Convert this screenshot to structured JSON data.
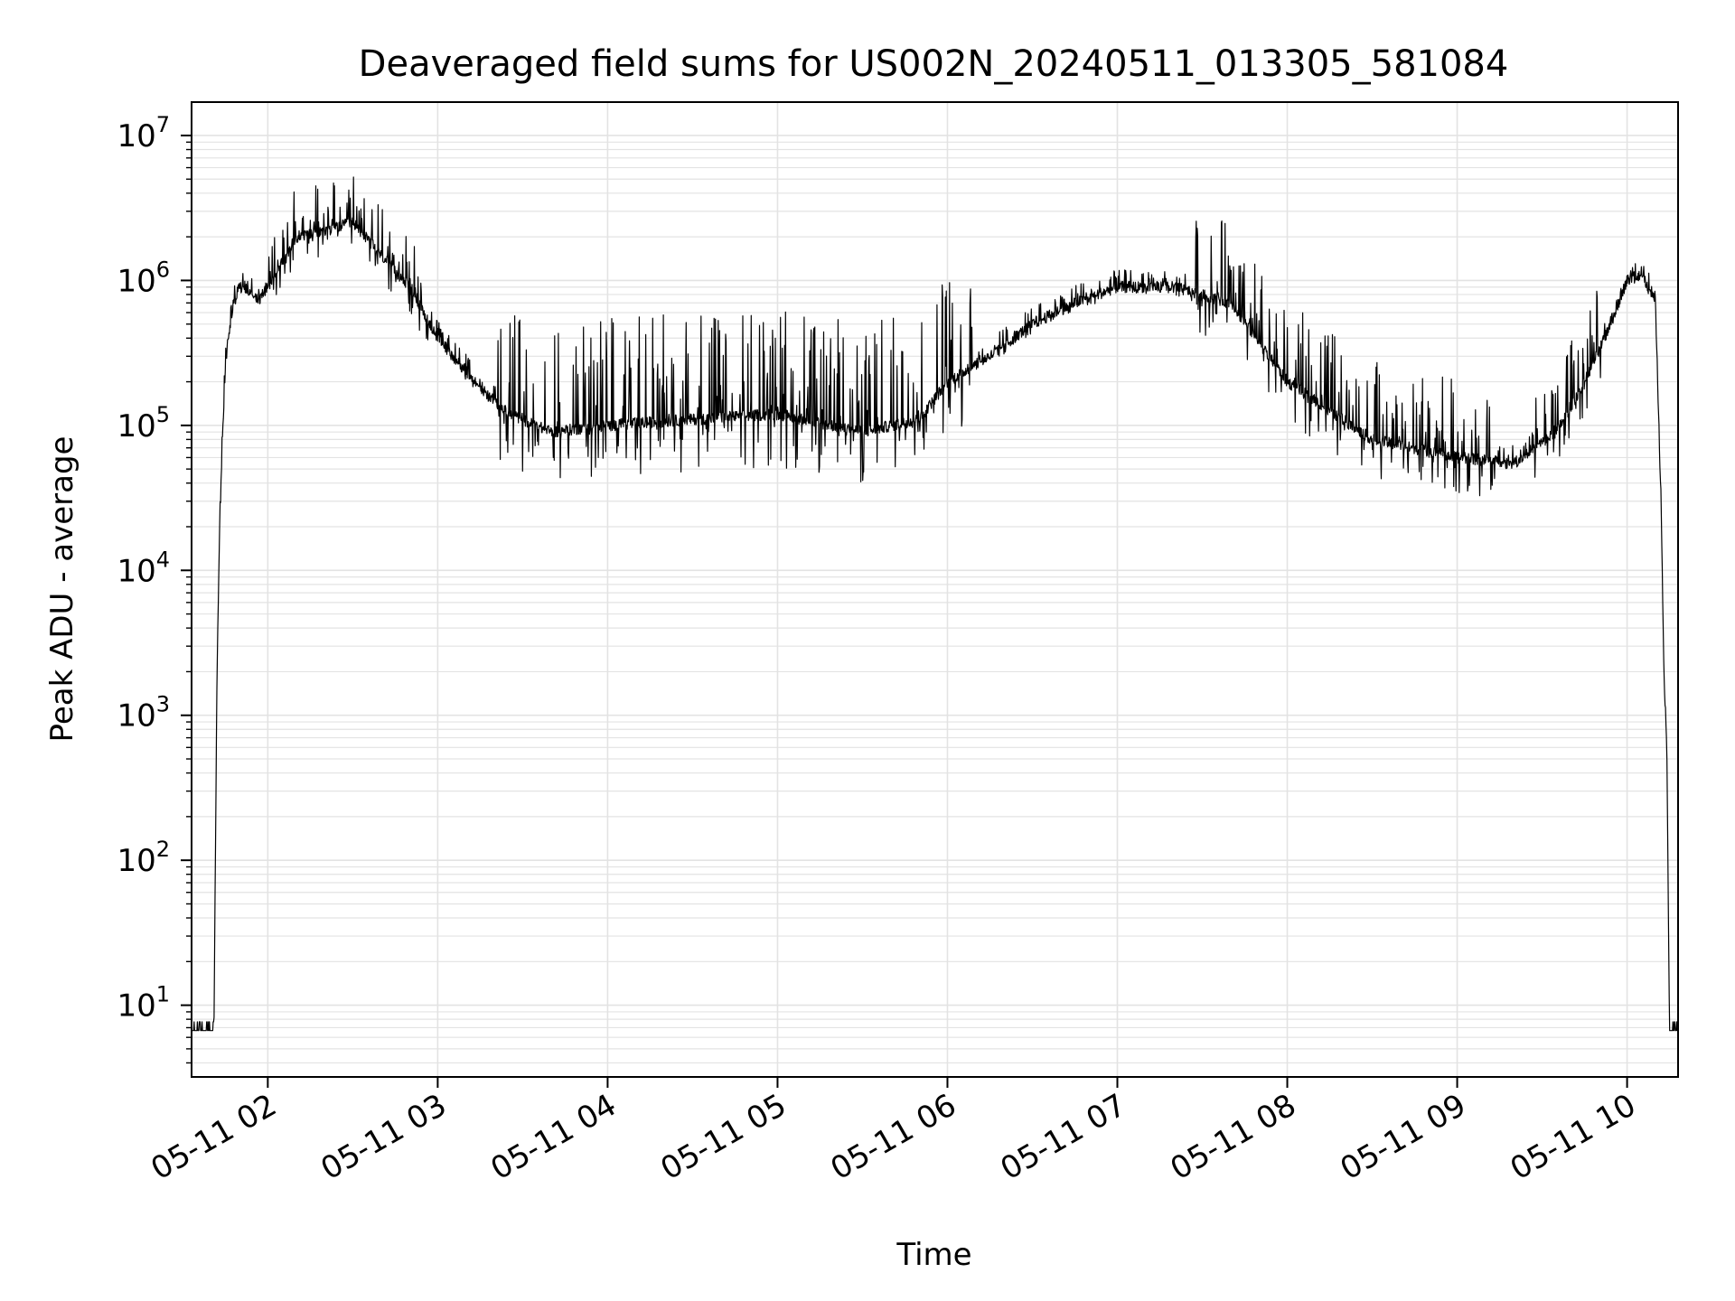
{
  "chart_data": {
    "type": "line",
    "title": "Deaveraged field sums for US002N_20240511_013305_581084",
    "xlabel": "Time",
    "ylabel": "Peak ADU - average",
    "yscale": "log",
    "ylim": [
      3.2,
      17000000
    ],
    "xlim": [
      "2024-05-11 01:33:05",
      "2024-05-11 10:18:00"
    ],
    "grid": true,
    "legend": "none",
    "colors": {
      "line": "#000000",
      "grid": "#e3e3e3",
      "axes": "#000000"
    },
    "x_ticks": [
      "05-11 02",
      "05-11 03",
      "05-11 04",
      "05-11 05",
      "05-11 06",
      "05-11 07",
      "05-11 08",
      "05-11 09",
      "05-11 10"
    ],
    "x_tick_times": [
      "2024-05-11 02:00",
      "2024-05-11 03:00",
      "2024-05-11 04:00",
      "2024-05-11 05:00",
      "2024-05-11 06:00",
      "2024-05-11 07:00",
      "2024-05-11 08:00",
      "2024-05-11 09:00",
      "2024-05-11 10:00"
    ],
    "y_ticks": [
      {
        "base": "10",
        "exp": "1",
        "value": 10
      },
      {
        "base": "10",
        "exp": "2",
        "value": 100
      },
      {
        "base": "10",
        "exp": "3",
        "value": 1000
      },
      {
        "base": "10",
        "exp": "4",
        "value": 10000
      },
      {
        "base": "10",
        "exp": "5",
        "value": 100000
      },
      {
        "base": "10",
        "exp": "6",
        "value": 1000000
      },
      {
        "base": "10",
        "exp": "7",
        "value": 10000000
      }
    ],
    "series": [
      {
        "style": "noisy",
        "x": [
          "2024-05-11 01:33",
          "2024-05-11 01:40",
          "2024-05-11 01:41",
          "2024-05-11 01:42",
          "2024-05-11 01:43",
          "2024-05-11 01:44",
          "2024-05-11 01:45",
          "2024-05-11 01:46",
          "2024-05-11 01:48",
          "2024-05-11 01:50",
          "2024-05-11 01:53",
          "2024-05-11 01:57",
          "2024-05-11 02:00",
          "2024-05-11 02:10",
          "2024-05-11 02:20",
          "2024-05-11 02:30",
          "2024-05-11 02:40",
          "2024-05-11 02:50",
          "2024-05-11 03:00",
          "2024-05-11 03:15",
          "2024-05-11 03:25",
          "2024-05-11 03:40",
          "2024-05-11 04:00",
          "2024-05-11 04:30",
          "2024-05-11 05:00",
          "2024-05-11 05:30",
          "2024-05-11 05:50",
          "2024-05-11 06:00",
          "2024-05-11 06:15",
          "2024-05-11 06:30",
          "2024-05-11 06:45",
          "2024-05-11 07:00",
          "2024-05-11 07:20",
          "2024-05-11 07:40",
          "2024-05-11 08:00",
          "2024-05-11 08:30",
          "2024-05-11 09:00",
          "2024-05-11 09:20",
          "2024-05-11 09:35",
          "2024-05-11 09:45",
          "2024-05-11 09:52",
          "2024-05-11 10:00",
          "2024-05-11 10:05",
          "2024-05-11 10:10",
          "2024-05-11 10:12",
          "2024-05-11 10:13",
          "2024-05-11 10:14",
          "2024-05-11 10:15",
          "2024-05-11 10:18"
        ],
        "y": [
          7,
          7,
          7,
          1500,
          20000,
          80000,
          250000,
          400000,
          700000,
          900000,
          850000,
          750000,
          900000,
          2000000,
          2200000,
          2500000,
          1500000,
          900000,
          400000,
          180000,
          120000,
          90000,
          100000,
          110000,
          120000,
          90000,
          110000,
          200000,
          300000,
          500000,
          700000,
          900000,
          900000,
          700000,
          200000,
          80000,
          60000,
          55000,
          90000,
          200000,
          400000,
          1000000,
          1100000,
          700000,
          30000,
          2000,
          600,
          7,
          7
        ]
      }
    ]
  }
}
